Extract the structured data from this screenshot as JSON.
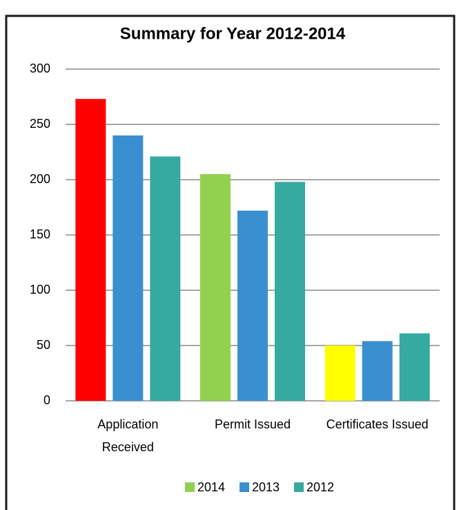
{
  "chart_data": {
    "type": "bar",
    "title": "Summary for Year 2012-2014",
    "categories": [
      "Application Received",
      "Permit Issued",
      "Certificates Issued"
    ],
    "series": [
      {
        "name": "2014",
        "color": "#92d050",
        "point_colors": [
          "#ff0000",
          "#92d050",
          "#ffff00"
        ],
        "values": [
          273,
          205,
          50
        ]
      },
      {
        "name": "2013",
        "color": "#3a8fd0",
        "values": [
          240,
          172,
          54
        ]
      },
      {
        "name": "2012",
        "color": "#36a9a0",
        "values": [
          221,
          198,
          61
        ]
      }
    ],
    "ylim": [
      0,
      300
    ],
    "yticks": [
      0,
      50,
      100,
      150,
      200,
      250,
      300
    ],
    "grid": true,
    "legend": "bottom"
  }
}
